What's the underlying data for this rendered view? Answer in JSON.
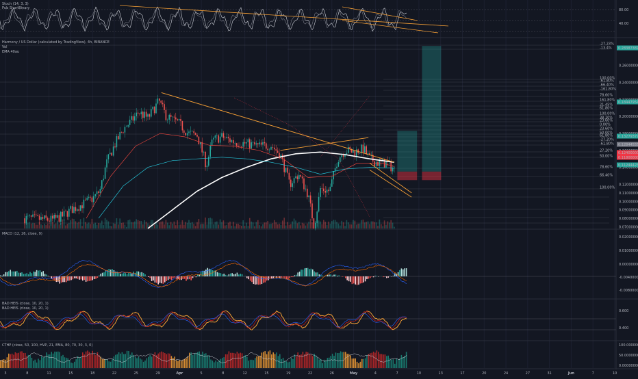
{
  "panes": {
    "stoch": {
      "label": "Stoch (14, 3, 3)",
      "sub": "Pub ShortBinary",
      "ticks": [
        "80.00",
        "40.00"
      ],
      "range": [
        0,
        100
      ]
    },
    "main": {
      "title": "Harmony / US Dollar (calculated by TradingView), 4h, BINANCE",
      "vol": "Vol",
      "ema": "EMA 40au"
    },
    "macd": {
      "label": "MACD (12, 26, close, 9)",
      "ticks": [
        "0.02000000",
        "0.01000000",
        "0.00000000",
        "-0.00400000",
        "-0.00800000"
      ],
      "range": [
        -0.009,
        0.022
      ]
    },
    "bhs": {
      "label1": "BAD HEIS (close, 10, 20, 1)",
      "label2": "BAD HEIS (close, 10, 20, 1)",
      "ticks": [
        "0.600",
        "0.400"
      ],
      "range": [
        0.35,
        0.65
      ]
    },
    "cthp": {
      "label": "CTHP (close, 50, 100, HVP, 21, EMA, 80, 70, 30, 3, 0)",
      "ticks": [
        "100.00000000",
        "50.00000000",
        "0.00000000"
      ],
      "range": [
        0,
        100
      ]
    }
  },
  "price_axis": [
    "0.28000000",
    "0.26000000",
    "0.24000000",
    "0.22000000",
    "0.20000000",
    "0.18000000",
    "0.16000000",
    "0.14000000",
    "0.12000000",
    "0.11000000",
    "0.10000000",
    "0.09000000",
    "0.08000000",
    "0.07000000"
  ],
  "price_tags": [
    {
      "text": "0.28387387",
      "color": "#26a69a",
      "price": 0.2839
    },
    {
      "text": "0.18447954",
      "color": "#26a69a",
      "price": 0.1845
    },
    {
      "text": "0.13279377",
      "color": "#26a69a",
      "price": 0.1373
    },
    {
      "text": "0.12844555",
      "color": "#787b86",
      "price": 0.1302
    },
    {
      "text": "0.12400000",
      "color": "#f23645",
      "price": 0.1235
    },
    {
      "text": "0.11800000",
      "color": "#f23645",
      "price": 0.1192
    },
    {
      "text": "0.11244423",
      "color": "#26a69a",
      "price": 0.1112
    }
  ],
  "fib_labels": [
    "-27.23%",
    "-13.4%",
    "100.00%",
    "-61.80%",
    "-66.40%",
    "-161.80%",
    "78.60%",
    "161.80%",
    "21.45%",
    "61.80%",
    "100.00%",
    "38.20%",
    "23.60%",
    "0.00%",
    "23.60%",
    "50.00%",
    "61.80%",
    "-27.20%",
    "-61.80%",
    "27.20%",
    "50.00%",
    "78.60%",
    "66.40%",
    "100.00%"
  ],
  "time_axis": [
    "3",
    "8",
    "11",
    "15",
    "18",
    "22",
    "25",
    "29",
    "Apr",
    "5",
    "8",
    "12",
    "15",
    "19",
    "22",
    "26",
    "May",
    "4",
    "7",
    "10",
    "13",
    "17",
    "20",
    "24",
    "27",
    "31",
    "Jun",
    "7",
    "10"
  ],
  "chart_data": {
    "type": "candlestick",
    "title": "Harmony / US Dollar (calculated by TradingView), 4h, BINANCE",
    "y_range": [
      0.068,
      0.292
    ],
    "price_path": [
      [
        0.04,
        0.08
      ],
      [
        0.085,
        0.078
      ],
      [
        0.1,
        0.082
      ],
      [
        0.115,
        0.09
      ],
      [
        0.13,
        0.095
      ],
      [
        0.15,
        0.103
      ],
      [
        0.162,
        0.112
      ],
      [
        0.173,
        0.145
      ],
      [
        0.185,
        0.165
      ],
      [
        0.2,
        0.185
      ],
      [
        0.215,
        0.196
      ],
      [
        0.225,
        0.205
      ],
      [
        0.24,
        0.198
      ],
      [
        0.258,
        0.218
      ],
      [
        0.27,
        0.2
      ],
      [
        0.29,
        0.192
      ],
      [
        0.305,
        0.18
      ],
      [
        0.32,
        0.178
      ],
      [
        0.335,
        0.142
      ],
      [
        0.345,
        0.172
      ],
      [
        0.36,
        0.176
      ],
      [
        0.38,
        0.17
      ],
      [
        0.4,
        0.168
      ],
      [
        0.42,
        0.165
      ],
      [
        0.44,
        0.166
      ],
      [
        0.455,
        0.155
      ],
      [
        0.47,
        0.12
      ],
      [
        0.485,
        0.132
      ],
      [
        0.5,
        0.108
      ],
      [
        0.51,
        0.07
      ],
      [
        0.52,
        0.115
      ],
      [
        0.535,
        0.112
      ],
      [
        0.548,
        0.15
      ],
      [
        0.56,
        0.16
      ],
      [
        0.575,
        0.158
      ],
      [
        0.59,
        0.162
      ],
      [
        0.6,
        0.15
      ],
      [
        0.615,
        0.145
      ],
      [
        0.628,
        0.145
      ],
      [
        0.64,
        0.137
      ]
    ],
    "emas": [
      {
        "color": "#ffffff",
        "width": 1.6,
        "points": [
          [
            0.24,
            0.068
          ],
          [
            0.28,
            0.09
          ],
          [
            0.32,
            0.112
          ],
          [
            0.36,
            0.128
          ],
          [
            0.4,
            0.14
          ],
          [
            0.44,
            0.15
          ],
          [
            0.48,
            0.156
          ],
          [
            0.52,
            0.158
          ],
          [
            0.56,
            0.155
          ],
          [
            0.6,
            0.15
          ],
          [
            0.64,
            0.146
          ]
        ]
      },
      {
        "color": "#26c6da",
        "width": 0.7,
        "points": [
          [
            0.16,
            0.08
          ],
          [
            0.2,
            0.118
          ],
          [
            0.24,
            0.14
          ],
          [
            0.28,
            0.148
          ],
          [
            0.32,
            0.15
          ],
          [
            0.36,
            0.152
          ],
          [
            0.4,
            0.15
          ],
          [
            0.44,
            0.146
          ],
          [
            0.48,
            0.14
          ],
          [
            0.52,
            0.132
          ],
          [
            0.56,
            0.138
          ],
          [
            0.6,
            0.14
          ],
          [
            0.64,
            0.139
          ]
        ]
      },
      {
        "color": "#e0433c",
        "width": 0.7,
        "points": [
          [
            0.14,
            0.08
          ],
          [
            0.18,
            0.13
          ],
          [
            0.22,
            0.165
          ],
          [
            0.26,
            0.18
          ],
          [
            0.3,
            0.176
          ],
          [
            0.34,
            0.166
          ],
          [
            0.38,
            0.165
          ],
          [
            0.42,
            0.16
          ],
          [
            0.46,
            0.15
          ],
          [
            0.5,
            0.128
          ],
          [
            0.54,
            0.13
          ],
          [
            0.58,
            0.145
          ],
          [
            0.62,
            0.145
          ],
          [
            0.64,
            0.141
          ]
        ]
      }
    ],
    "trendlines": [
      [
        [
          0.262,
          0.228
        ],
        [
          0.64,
          0.146
        ]
      ],
      [
        [
          0.455,
          0.16
        ],
        [
          0.598,
          0.175
        ]
      ],
      [
        [
          0.6,
          0.145
        ],
        [
          0.668,
          0.11
        ]
      ],
      [
        [
          0.6,
          0.137
        ],
        [
          0.668,
          0.105
        ]
      ]
    ],
    "positions": [
      {
        "x": [
          0.645,
          0.677
        ],
        "entry": 0.135,
        "target": 0.183,
        "stop": 0.125
      },
      {
        "x": [
          0.685,
          0.716
        ],
        "entry": 0.135,
        "target": 0.283,
        "stop": 0.125
      }
    ]
  }
}
